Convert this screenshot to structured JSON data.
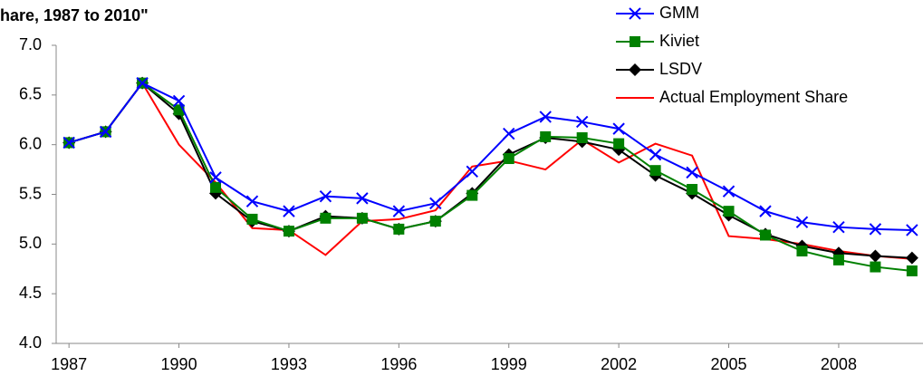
{
  "chart_data": {
    "type": "line",
    "title": "hare, 1987 to 2010\"",
    "x": [
      1987,
      1988,
      1989,
      1990,
      1991,
      1992,
      1993,
      1994,
      1995,
      1996,
      1997,
      1998,
      1999,
      2000,
      2001,
      2002,
      2003,
      2004,
      2005,
      2006,
      2007,
      2008,
      2009,
      2010
    ],
    "xlim": [
      1986.65,
      2010.3
    ],
    "xticks": [
      1987,
      1990,
      1993,
      1996,
      1999,
      2002,
      2005,
      2008
    ],
    "ylim": [
      4,
      7
    ],
    "yticks": [
      {
        "value": 4,
        "label": "4.0"
      },
      4.5,
      {
        "value": 5,
        "label": "5.0"
      },
      5.5,
      {
        "value": 6,
        "label": "6.0"
      },
      6.5,
      {
        "value": 7,
        "label": "7.0"
      }
    ],
    "grid": false,
    "legend": "top-right",
    "series": [
      {
        "name": "GMM",
        "color": "#0000ff",
        "marker": "x",
        "values": [
          6.02,
          6.13,
          6.62,
          6.44,
          5.67,
          5.43,
          5.33,
          5.48,
          5.46,
          5.33,
          5.41,
          5.73,
          6.11,
          6.28,
          6.23,
          6.16,
          5.9,
          5.72,
          5.53,
          5.33,
          5.22,
          5.17,
          5.15,
          5.14
        ]
      },
      {
        "name": "Kiviet",
        "color": "#008000",
        "marker": "square",
        "values": [
          6.02,
          6.13,
          6.62,
          6.35,
          5.57,
          5.25,
          5.13,
          5.26,
          5.26,
          5.15,
          5.23,
          5.49,
          5.86,
          6.08,
          6.07,
          6.01,
          5.74,
          5.55,
          5.33,
          5.09,
          4.93,
          4.84,
          4.77,
          4.73
        ]
      },
      {
        "name": "LSDV",
        "color": "#000000",
        "marker": "diamond",
        "values": [
          6.02,
          6.13,
          6.62,
          6.31,
          5.51,
          5.23,
          5.13,
          5.28,
          5.26,
          5.15,
          5.23,
          5.51,
          5.9,
          6.07,
          6.03,
          5.95,
          5.69,
          5.51,
          5.29,
          5.1,
          4.98,
          4.91,
          4.88,
          4.86
        ]
      },
      {
        "name": "Actual Employment Share",
        "color": "#ff0000",
        "marker": null,
        "values": [
          6.02,
          6.13,
          6.62,
          6.0,
          5.62,
          5.16,
          5.14,
          4.89,
          5.23,
          5.25,
          5.34,
          5.78,
          5.84,
          5.75,
          6.05,
          5.82,
          6.01,
          5.89,
          5.08,
          5.05,
          5.0,
          4.93,
          4.88,
          4.85
        ]
      }
    ]
  }
}
